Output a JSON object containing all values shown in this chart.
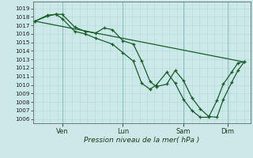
{
  "background_color": "#cce8e8",
  "grid_color_minor": "#b0d8d8",
  "grid_color_major": "#88bbbb",
  "line_color": "#1a5c2a",
  "ylabel_ticks": [
    1006,
    1007,
    1008,
    1009,
    1010,
    1011,
    1012,
    1013,
    1014,
    1015,
    1016,
    1017,
    1018,
    1019
  ],
  "ylim": [
    1005.5,
    1019.8
  ],
  "xlabel": "Pression niveau de la mer( hPa )",
  "xtick_labels": [
    "Ven",
    "Lun",
    "Sam",
    "Dim"
  ],
  "xtick_positions": [
    0.13,
    0.42,
    0.71,
    0.92
  ],
  "line1": [
    [
      0.0,
      1017.5
    ],
    [
      0.06,
      1018.1
    ],
    [
      0.1,
      1018.3
    ],
    [
      0.13,
      1018.3
    ],
    [
      0.19,
      1016.8
    ],
    [
      0.24,
      1016.3
    ],
    [
      0.29,
      1016.1
    ],
    [
      0.33,
      1016.7
    ],
    [
      0.37,
      1016.5
    ],
    [
      0.42,
      1015.2
    ],
    [
      0.47,
      1014.8
    ],
    [
      0.51,
      1012.8
    ],
    [
      0.55,
      1010.4
    ],
    [
      0.58,
      1009.8
    ],
    [
      0.63,
      1010.1
    ],
    [
      0.67,
      1011.7
    ],
    [
      0.71,
      1010.5
    ],
    [
      0.75,
      1008.5
    ],
    [
      0.79,
      1007.2
    ],
    [
      0.83,
      1006.3
    ],
    [
      0.87,
      1006.2
    ],
    [
      0.9,
      1008.3
    ],
    [
      0.94,
      1010.3
    ],
    [
      0.97,
      1011.7
    ],
    [
      1.0,
      1012.7
    ]
  ],
  "line2": [
    [
      0.0,
      1017.5
    ],
    [
      0.06,
      1018.2
    ],
    [
      0.1,
      1018.3
    ],
    [
      0.13,
      1017.8
    ],
    [
      0.19,
      1016.3
    ],
    [
      0.24,
      1016.0
    ],
    [
      0.29,
      1015.5
    ],
    [
      0.37,
      1014.8
    ],
    [
      0.42,
      1013.8
    ],
    [
      0.47,
      1012.8
    ],
    [
      0.51,
      1010.2
    ],
    [
      0.55,
      1009.5
    ],
    [
      0.58,
      1010.0
    ],
    [
      0.63,
      1011.5
    ],
    [
      0.67,
      1010.2
    ],
    [
      0.71,
      1008.3
    ],
    [
      0.75,
      1007.0
    ],
    [
      0.79,
      1006.2
    ],
    [
      0.83,
      1006.2
    ],
    [
      0.87,
      1008.2
    ],
    [
      0.9,
      1010.1
    ],
    [
      0.94,
      1011.5
    ],
    [
      0.97,
      1012.6
    ],
    [
      1.0,
      1012.7
    ]
  ],
  "line3": [
    [
      0.0,
      1017.5
    ],
    [
      1.0,
      1012.7
    ]
  ]
}
